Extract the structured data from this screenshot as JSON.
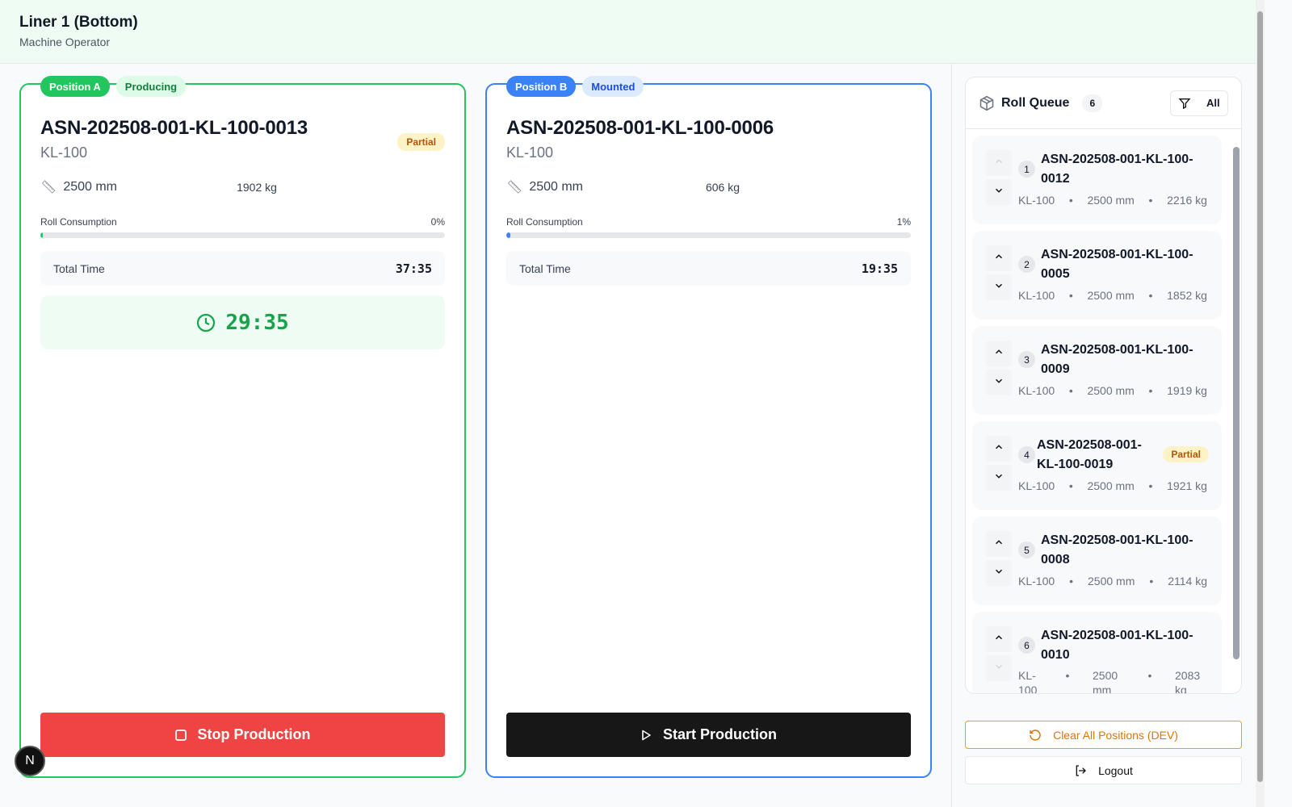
{
  "header": {
    "title": "Liner 1 (Bottom)",
    "subtitle": "Machine Operator"
  },
  "positions": [
    {
      "label": "Position A",
      "status": "Producing",
      "asn": "ASN-202508-001-KL-100-0013",
      "type": "KL-100",
      "badge": "Partial",
      "width": "2500 mm",
      "weight": "1902 kg",
      "consumption_label": "Roll Consumption",
      "consumption": "0%",
      "consumption_value": 0,
      "total_time_label": "Total Time",
      "total_time": "37:35",
      "timer": "29:35",
      "action": "Stop Production",
      "color": "#22c55e"
    },
    {
      "label": "Position B",
      "status": "Mounted",
      "asn": "ASN-202508-001-KL-100-0006",
      "type": "KL-100",
      "width": "2500 mm",
      "weight": "606 kg",
      "consumption_label": "Roll Consumption",
      "consumption": "1%",
      "consumption_value": 1,
      "total_time_label": "Total Time",
      "total_time": "19:35",
      "action": "Start Production",
      "color": "#3b82f6"
    }
  ],
  "queue": {
    "title": "Roll Queue",
    "count": "6",
    "filter": "All",
    "items": [
      {
        "n": "1",
        "asn": "ASN-202508-001-KL-100-0012",
        "type": "KL-100",
        "width": "2500 mm",
        "weight": "2216 kg"
      },
      {
        "n": "2",
        "asn": "ASN-202508-001-KL-100-0005",
        "type": "KL-100",
        "width": "2500 mm",
        "weight": "1852 kg"
      },
      {
        "n": "3",
        "asn": "ASN-202508-001-KL-100-0009",
        "type": "KL-100",
        "width": "2500 mm",
        "weight": "1919 kg"
      },
      {
        "n": "4",
        "asn": "ASN-202508-001-KL-100-0019",
        "type": "KL-100",
        "width": "2500 mm",
        "weight": "1921 kg",
        "badge": "Partial"
      },
      {
        "n": "5",
        "asn": "ASN-202508-001-KL-100-0008",
        "type": "KL-100",
        "width": "2500 mm",
        "weight": "2114 kg"
      },
      {
        "n": "6",
        "asn": "ASN-202508-001-KL-100-0010",
        "type": "KL-100",
        "width": "2500 mm",
        "weight": "2083 kg"
      }
    ]
  },
  "footer": {
    "clear": "Clear All Positions (DEV)",
    "logout": "Logout"
  },
  "dev_badge": "N"
}
